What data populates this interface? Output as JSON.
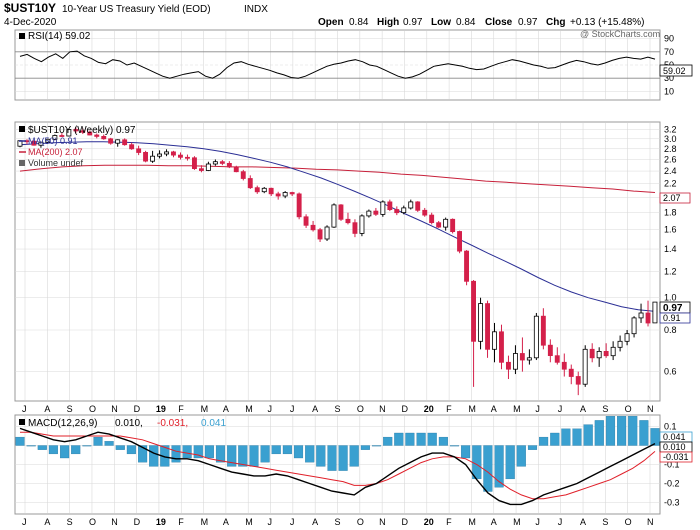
{
  "header": {
    "symbol": "$UST10Y",
    "name": "10-Year US Treasury Yield (EOD)",
    "exchange": "INDX",
    "date": "4-Dec-2020",
    "open_label": "Open",
    "open": "0.84",
    "high_label": "High",
    "high": "0.97",
    "low_label": "Low",
    "low": "0.84",
    "close_label": "Close",
    "close": "0.97",
    "chg_label": "Chg",
    "chg": "+0.13 (+15.48%)",
    "watermark": "@ StockCharts.com"
  },
  "rsi_panel": {
    "legend": "RSI(14) 59.02",
    "current_badge": "59.02",
    "ticks": [
      "90",
      "70",
      "50",
      "30",
      "10"
    ]
  },
  "price_panel": {
    "legend_main": "$UST10Y (Weekly) 0.97",
    "legend_ma50": "MA(50) 0.91",
    "legend_ma200": "MA(200) 2.07",
    "legend_volume": "Volume undef",
    "ticks": [
      "3.2",
      "3.0",
      "2.8",
      "2.6",
      "2.4",
      "2.2",
      "2.0",
      "1.8",
      "1.6",
      "1.4",
      "1.2",
      "1.0",
      "0.8",
      "0.6"
    ],
    "badge_close": "0.97",
    "badge_ma50": "0.91",
    "badge_ma200": "2.07"
  },
  "macd_panel": {
    "legend_prefix": "MACD(12,26,9)",
    "legend_macd": "0.010,",
    "legend_signal": "-0.031,",
    "legend_hist": "0.041",
    "ticks": [
      "0.1",
      "0.0",
      "-0.1",
      "-0.2",
      "-0.3"
    ],
    "badge_hist": "0.041",
    "badge_macd": "0.010",
    "badge_signal": "-0.031"
  },
  "x_axis_labels": [
    "J",
    "A",
    "S",
    "O",
    "N",
    "D",
    "19",
    "F",
    "M",
    "A",
    "M",
    "J",
    "J",
    "A",
    "S",
    "O",
    "N",
    "D",
    "20",
    "F",
    "M",
    "A",
    "M",
    "J",
    "J",
    "A",
    "S",
    "O",
    "N"
  ],
  "colors": {
    "up_candle": "#ffffff",
    "down_candle": "#d4204a",
    "candle_outline": "#000000",
    "ma50": "#2b2f95",
    "ma200": "#c7203a",
    "rsi_line": "#000000",
    "rsi_fill": "#8b6a5e",
    "macd_line": "#000000",
    "signal_line": "#e0202a",
    "histogram": "#3aa0d0",
    "grid": "#d9d9d9"
  },
  "chart_data": {
    "type": "candlestick",
    "title": "$UST10Y 10-Year US Treasury Yield (EOD) INDX",
    "period": "Weekly",
    "x_range": [
      "2018-07",
      "2020-12"
    ],
    "ylim_price": [
      0.5,
      3.3
    ],
    "y_scale": "log",
    "rsi": {
      "ylim": [
        0,
        100
      ],
      "period": 14,
      "last": 59.02,
      "values": [
        63,
        66,
        60,
        55,
        62,
        67,
        60,
        70,
        71,
        64,
        60,
        54,
        52,
        58,
        56,
        50,
        53,
        48,
        43,
        38,
        33,
        30,
        33,
        36,
        38,
        40,
        33,
        30,
        36,
        46,
        53,
        55,
        51,
        48,
        45,
        42,
        38,
        35,
        31,
        30,
        33,
        38,
        43,
        48,
        51,
        53,
        56,
        58,
        55,
        50,
        48,
        43,
        38,
        33,
        30,
        32,
        36,
        42,
        48,
        50,
        52,
        50,
        48,
        45,
        43,
        44,
        48,
        52,
        55,
        58,
        56,
        53,
        50,
        48,
        45,
        46,
        50,
        54,
        57,
        55,
        52,
        50,
        53,
        57,
        60,
        62,
        60,
        59,
        62,
        59
      ]
    },
    "ohlc": [
      [
        2.85,
        2.97,
        2.83,
        2.96
      ],
      [
        2.96,
        2.99,
        2.89,
        2.95
      ],
      [
        2.95,
        2.97,
        2.86,
        2.87
      ],
      [
        2.87,
        2.94,
        2.82,
        2.93
      ],
      [
        2.93,
        3.0,
        2.91,
        2.99
      ],
      [
        2.99,
        3.09,
        2.97,
        3.07
      ],
      [
        3.07,
        3.12,
        3.04,
        3.06
      ],
      [
        3.06,
        3.21,
        3.05,
        3.2
      ],
      [
        3.2,
        3.25,
        3.12,
        3.17
      ],
      [
        3.17,
        3.22,
        3.1,
        3.14
      ],
      [
        3.14,
        3.17,
        3.07,
        3.08
      ],
      [
        3.08,
        3.11,
        3.01,
        3.05
      ],
      [
        3.05,
        3.09,
        2.98,
        3.0
      ],
      [
        3.0,
        3.02,
        2.88,
        2.91
      ],
      [
        2.91,
        2.99,
        2.84,
        2.98
      ],
      [
        2.98,
        3.01,
        2.86,
        2.88
      ],
      [
        2.88,
        2.92,
        2.78,
        2.8
      ],
      [
        2.8,
        2.86,
        2.68,
        2.73
      ],
      [
        2.73,
        2.76,
        2.55,
        2.57
      ],
      [
        2.57,
        2.76,
        2.54,
        2.66
      ],
      [
        2.66,
        2.77,
        2.62,
        2.7
      ],
      [
        2.7,
        2.79,
        2.66,
        2.74
      ],
      [
        2.74,
        2.76,
        2.64,
        2.68
      ],
      [
        2.68,
        2.73,
        2.6,
        2.64
      ],
      [
        2.64,
        2.69,
        2.58,
        2.63
      ],
      [
        2.63,
        2.66,
        2.42,
        2.44
      ],
      [
        2.44,
        2.5,
        2.38,
        2.41
      ],
      [
        2.41,
        2.56,
        2.4,
        2.52
      ],
      [
        2.52,
        2.6,
        2.49,
        2.56
      ],
      [
        2.56,
        2.59,
        2.5,
        2.53
      ],
      [
        2.53,
        2.57,
        2.45,
        2.47
      ],
      [
        2.47,
        2.49,
        2.38,
        2.39
      ],
      [
        2.39,
        2.42,
        2.25,
        2.28
      ],
      [
        2.28,
        2.33,
        2.12,
        2.14
      ],
      [
        2.14,
        2.17,
        2.05,
        2.08
      ],
      [
        2.08,
        2.15,
        2.06,
        2.13
      ],
      [
        2.13,
        2.14,
        2.02,
        2.05
      ],
      [
        2.05,
        2.08,
        1.97,
        2.02
      ],
      [
        2.02,
        2.09,
        1.99,
        2.07
      ],
      [
        2.07,
        2.08,
        2.02,
        2.05
      ],
      [
        2.05,
        2.07,
        1.72,
        1.75
      ],
      [
        1.75,
        1.78,
        1.62,
        1.65
      ],
      [
        1.65,
        1.7,
        1.58,
        1.6
      ],
      [
        1.6,
        1.62,
        1.47,
        1.5
      ],
      [
        1.5,
        1.65,
        1.48,
        1.63
      ],
      [
        1.63,
        1.92,
        1.62,
        1.9
      ],
      [
        1.9,
        1.91,
        1.7,
        1.72
      ],
      [
        1.72,
        1.8,
        1.66,
        1.68
      ],
      [
        1.68,
        1.72,
        1.52,
        1.56
      ],
      [
        1.56,
        1.78,
        1.53,
        1.76
      ],
      [
        1.76,
        1.84,
        1.74,
        1.82
      ],
      [
        1.82,
        1.86,
        1.76,
        1.78
      ],
      [
        1.78,
        1.96,
        1.75,
        1.94
      ],
      [
        1.94,
        1.97,
        1.82,
        1.84
      ],
      [
        1.84,
        1.88,
        1.77,
        1.8
      ],
      [
        1.8,
        1.89,
        1.78,
        1.86
      ],
      [
        1.86,
        1.97,
        1.84,
        1.94
      ],
      [
        1.94,
        1.95,
        1.81,
        1.83
      ],
      [
        1.83,
        1.86,
        1.75,
        1.77
      ],
      [
        1.77,
        1.8,
        1.66,
        1.68
      ],
      [
        1.68,
        1.7,
        1.62,
        1.63
      ],
      [
        1.63,
        1.74,
        1.59,
        1.72
      ],
      [
        1.72,
        1.73,
        1.56,
        1.58
      ],
      [
        1.58,
        1.59,
        1.36,
        1.38
      ],
      [
        1.38,
        1.39,
        1.09,
        1.12
      ],
      [
        1.12,
        1.13,
        0.54,
        0.74
      ],
      [
        0.74,
        1.0,
        0.7,
        0.96
      ],
      [
        0.96,
        0.98,
        0.66,
        0.7
      ],
      [
        0.7,
        0.84,
        0.64,
        0.79
      ],
      [
        0.79,
        0.83,
        0.61,
        0.64
      ],
      [
        0.64,
        0.67,
        0.57,
        0.61
      ],
      [
        0.61,
        0.72,
        0.59,
        0.68
      ],
      [
        0.68,
        0.76,
        0.6,
        0.65
      ],
      [
        0.65,
        0.7,
        0.63,
        0.66
      ],
      [
        0.66,
        0.9,
        0.65,
        0.88
      ],
      [
        0.88,
        0.93,
        0.7,
        0.72
      ],
      [
        0.72,
        0.75,
        0.64,
        0.67
      ],
      [
        0.67,
        0.71,
        0.63,
        0.64
      ],
      [
        0.64,
        0.68,
        0.58,
        0.61
      ],
      [
        0.61,
        0.63,
        0.55,
        0.58
      ],
      [
        0.58,
        0.6,
        0.51,
        0.55
      ],
      [
        0.55,
        0.72,
        0.54,
        0.7
      ],
      [
        0.7,
        0.73,
        0.64,
        0.66
      ],
      [
        0.66,
        0.71,
        0.62,
        0.69
      ],
      [
        0.69,
        0.73,
        0.66,
        0.67
      ],
      [
        0.67,
        0.74,
        0.65,
        0.71
      ],
      [
        0.71,
        0.77,
        0.69,
        0.74
      ],
      [
        0.74,
        0.8,
        0.72,
        0.78
      ],
      [
        0.78,
        0.88,
        0.76,
        0.87
      ],
      [
        0.87,
        0.96,
        0.84,
        0.9
      ],
      [
        0.9,
        0.98,
        0.82,
        0.84
      ],
      [
        0.84,
        0.97,
        0.84,
        0.97
      ]
    ],
    "ma50": [
      2.88,
      2.9,
      2.92,
      2.93,
      2.94,
      2.94,
      2.93,
      2.92,
      2.9,
      2.87,
      2.84,
      2.8,
      2.75,
      2.69,
      2.62,
      2.55,
      2.47,
      2.38,
      2.29,
      2.19,
      2.09,
      1.99,
      1.89,
      1.79,
      1.7,
      1.61,
      1.52,
      1.44,
      1.36,
      1.29,
      1.22,
      1.15,
      1.09,
      1.04,
      1.0,
      0.97,
      0.94,
      0.92,
      0.91
    ],
    "ma200": [
      2.4,
      2.44,
      2.47,
      2.49,
      2.5,
      2.5,
      2.5,
      2.49,
      2.49,
      2.48,
      2.47,
      2.47,
      2.46,
      2.45,
      2.43,
      2.42,
      2.4,
      2.38,
      2.35,
      2.33,
      2.3,
      2.27,
      2.24,
      2.22,
      2.2,
      2.18,
      2.16,
      2.14,
      2.12,
      2.09,
      2.07
    ],
    "macd": {
      "macd": [
        0.09,
        0.07,
        0.05,
        0.03,
        0.02,
        0.03,
        0.05,
        0.07,
        0.06,
        0.04,
        0.02,
        -0.01,
        -0.04,
        -0.06,
        -0.07,
        -0.07,
        -0.08,
        -0.1,
        -0.12,
        -0.14,
        -0.15,
        -0.16,
        -0.16,
        -0.15,
        -0.16,
        -0.18,
        -0.2,
        -0.22,
        -0.24,
        -0.25,
        -0.26,
        -0.22,
        -0.2,
        -0.16,
        -0.12,
        -0.09,
        -0.06,
        -0.04,
        -0.04,
        -0.06,
        -0.1,
        -0.18,
        -0.25,
        -0.29,
        -0.31,
        -0.31,
        -0.29,
        -0.26,
        -0.24,
        -0.22,
        -0.2,
        -0.17,
        -0.14,
        -0.11,
        -0.08,
        -0.05,
        -0.02,
        0.01
      ],
      "signal": [
        0.07,
        0.07,
        0.06,
        0.05,
        0.05,
        0.05,
        0.05,
        0.05,
        0.05,
        0.05,
        0.04,
        0.03,
        0.01,
        -0.01,
        -0.03,
        -0.04,
        -0.05,
        -0.07,
        -0.08,
        -0.09,
        -0.1,
        -0.11,
        -0.12,
        -0.13,
        -0.14,
        -0.15,
        -0.16,
        -0.17,
        -0.18,
        -0.19,
        -0.21,
        -0.21,
        -0.2,
        -0.18,
        -0.15,
        -0.12,
        -0.09,
        -0.07,
        -0.06,
        -0.06,
        -0.07,
        -0.1,
        -0.14,
        -0.19,
        -0.23,
        -0.26,
        -0.28,
        -0.28,
        -0.27,
        -0.26,
        -0.24,
        -0.22,
        -0.2,
        -0.18,
        -0.15,
        -0.12,
        -0.08,
        -0.031
      ],
      "histogram_last": 0.041
    }
  }
}
